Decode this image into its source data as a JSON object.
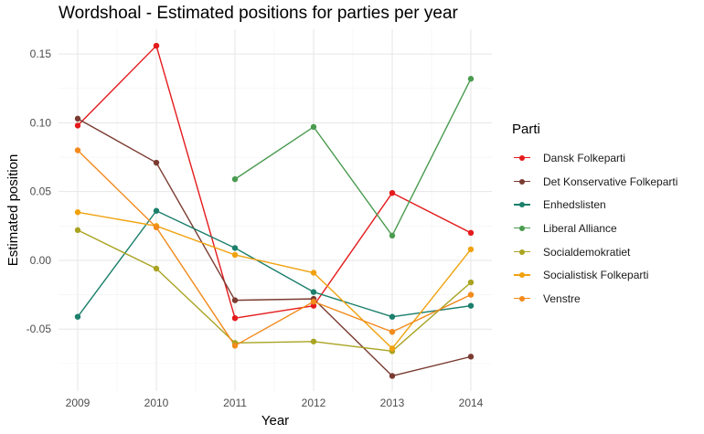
{
  "chart_data": {
    "type": "line",
    "title": "Wordshoal - Estimated positions for parties per year",
    "xlabel": "Year",
    "ylabel": "Estimated position",
    "categories": [
      "2009",
      "2010",
      "2011",
      "2012",
      "2013",
      "2014"
    ],
    "y_ticks": [
      "0.15",
      "0.10",
      "0.05",
      "0.00",
      "-0.05"
    ],
    "y_tick_values": [
      0.15,
      0.1,
      0.05,
      0.0,
      -0.05
    ],
    "ylim": [
      -0.095,
      0.168
    ],
    "grid": true,
    "legend_title": "Parti",
    "legend_position": "right",
    "series": [
      {
        "name": "Dansk Folkeparti",
        "color": "#e41a1c",
        "values": [
          0.098,
          0.156,
          -0.042,
          -0.033,
          0.049,
          0.02
        ]
      },
      {
        "name": "Det Konservative Folkeparti",
        "color": "#7a3b31",
        "values": [
          0.103,
          0.071,
          -0.029,
          -0.028,
          -0.084,
          -0.07
        ]
      },
      {
        "name": "Enhedslisten",
        "color": "#1b7f6b",
        "values": [
          -0.041,
          0.036,
          0.009,
          -0.023,
          -0.041,
          -0.033
        ]
      },
      {
        "name": "Liberal Alliance",
        "color": "#4a9b4f",
        "values": [
          null,
          null,
          0.059,
          0.097,
          0.018,
          0.132
        ]
      },
      {
        "name": "Socialdemokratiet",
        "color": "#a9a321",
        "values": [
          0.022,
          -0.006,
          -0.06,
          -0.059,
          -0.066,
          -0.016
        ]
      },
      {
        "name": "Socialistisk Folkeparti",
        "color": "#f0a20e",
        "values": [
          0.035,
          0.025,
          0.004,
          -0.009,
          -0.064,
          0.008
        ]
      },
      {
        "name": "Venstre",
        "color": "#f28a1c",
        "values": [
          0.08,
          0.024,
          -0.062,
          -0.03,
          -0.052,
          -0.025
        ]
      }
    ]
  }
}
